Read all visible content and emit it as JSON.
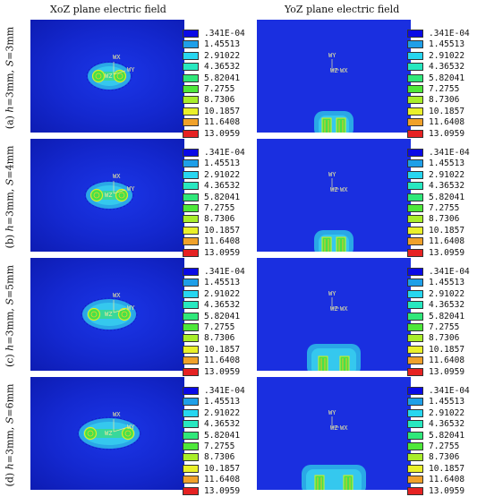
{
  "headers": {
    "left": "XoZ plane  electric field",
    "right": "YoZ plane electric field"
  },
  "legend": {
    "levels": [
      ".341E-04",
      "1.45513",
      "2.91022",
      "4.36532",
      "5.82041",
      "7.2755",
      "8.7306",
      "10.1857",
      "11.6408",
      "13.0959"
    ],
    "colors": [
      "#0a0ae6",
      "#1f9fe8",
      "#27d6f0",
      "#27e8c0",
      "#2fe87a",
      "#4ee83a",
      "#a9ee2a",
      "#eaf02a",
      "#f0a12a",
      "#e62222"
    ]
  },
  "axis_labels": {
    "wx": "WX",
    "wy": "WY",
    "wz": "WZ"
  },
  "rows": [
    {
      "prefix": "(a) ",
      "h_sym": "h",
      "h_val": "=3mm, ",
      "s_sym": "S",
      "s_val": "=3mm"
    },
    {
      "prefix": "(b) ",
      "h_sym": "h",
      "h_val": "=3mm, ",
      "s_sym": "S",
      "s_val": "=4mm"
    },
    {
      "prefix": "(c) ",
      "h_sym": "h",
      "h_val": "=3mm, ",
      "s_sym": "S",
      "s_val": "=5mm"
    },
    {
      "prefix": "(d) ",
      "h_sym": "h",
      "h_val": "=3mm, ",
      "s_sym": "S",
      "s_val": "=6mm"
    }
  ]
}
